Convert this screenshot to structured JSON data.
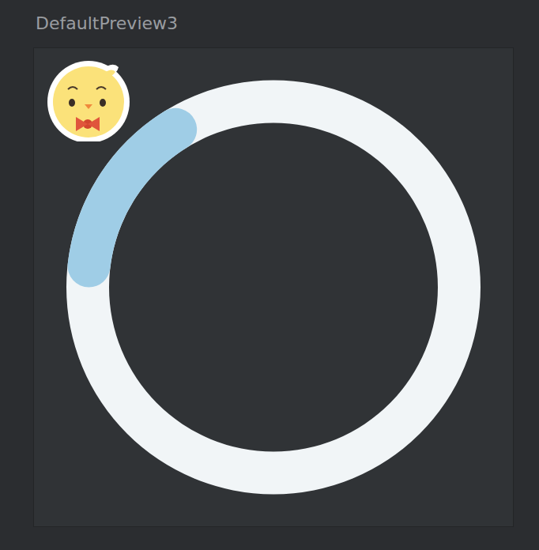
{
  "chart_data": {
    "type": "progress_ring",
    "title": "DefaultPreview3",
    "value": 18,
    "max": 100,
    "colors": [
      "#9fcde6",
      "#f1f5f7"
    ]
  }
}
